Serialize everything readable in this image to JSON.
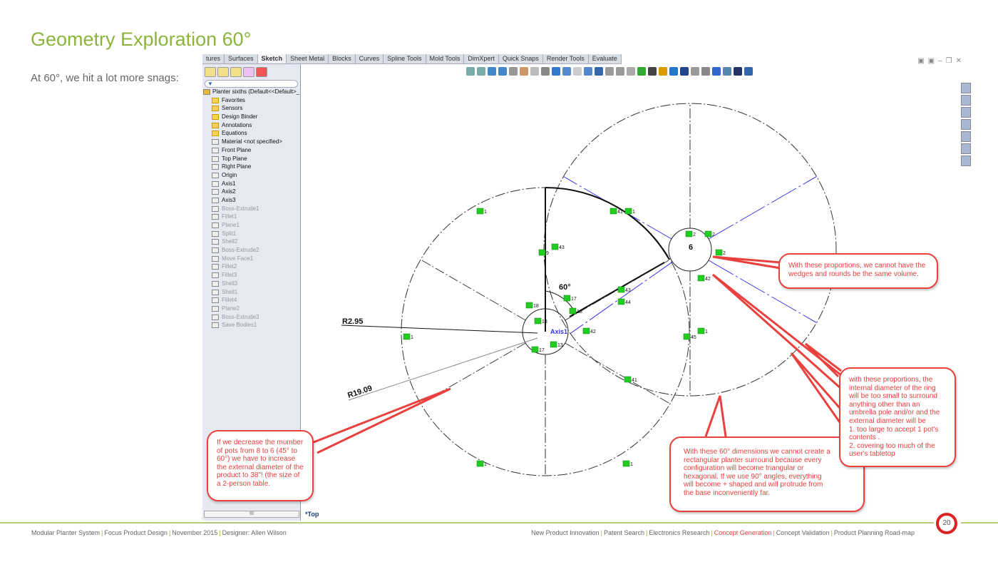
{
  "slide": {
    "title": "Geometry Exploration 60°",
    "subtitle": "At 60°, we hit a lot more snags:",
    "page_number": "20"
  },
  "cad": {
    "tabs": [
      "tures",
      "Surfaces",
      "Sketch",
      "Sheet Metal",
      "Blocks",
      "Curves",
      "Spline Tools",
      "Mold Tools",
      "DimXpert",
      "Quick Snaps",
      "Render Tools",
      "Evaluate"
    ],
    "active_tab": "Sketch",
    "tree_root": "Planter sixths  (Default<<Default>_",
    "tree": [
      {
        "label": "Favorites",
        "dim": false
      },
      {
        "label": "Sensors",
        "dim": false
      },
      {
        "label": "Design Binder",
        "dim": false
      },
      {
        "label": "Annotations",
        "dim": false
      },
      {
        "label": "Equations",
        "dim": false
      },
      {
        "label": "Material <not specified>",
        "dim": false
      },
      {
        "label": "Front Plane",
        "dim": false
      },
      {
        "label": "Top Plane",
        "dim": false
      },
      {
        "label": "Right Plane",
        "dim": false
      },
      {
        "label": "Origin",
        "dim": false
      },
      {
        "label": "Axis1",
        "dim": false
      },
      {
        "label": "Axis2",
        "dim": false
      },
      {
        "label": "Axis3",
        "dim": false
      },
      {
        "label": "Boss-Extrude1",
        "dim": true
      },
      {
        "label": "Fillet1",
        "dim": true
      },
      {
        "label": "Plane1",
        "dim": true
      },
      {
        "label": "Split1",
        "dim": true
      },
      {
        "label": "Shell2",
        "dim": true
      },
      {
        "label": "Boss-Extrude2",
        "dim": true
      },
      {
        "label": "Move Face1",
        "dim": true
      },
      {
        "label": "Fillet2",
        "dim": true
      },
      {
        "label": "Fillet3",
        "dim": true
      },
      {
        "label": "Shell3",
        "dim": true
      },
      {
        "label": "Shell1",
        "dim": true
      },
      {
        "label": "Fillet4",
        "dim": true
      },
      {
        "label": "Plane2",
        "dim": true
      },
      {
        "label": "Boss-Extrude3",
        "dim": true
      },
      {
        "label": "Save Bodies1",
        "dim": true
      }
    ],
    "scroll_thumb": "III",
    "view_label": "*Top",
    "dimensions": {
      "r_small": "R2.95",
      "r_large": "R19.09",
      "angle": "60°",
      "count": "6",
      "axis": "Axis1"
    },
    "relations": [
      "1",
      "41",
      "1",
      "43",
      "9",
      "2",
      "2",
      "2",
      "42",
      "17",
      "18",
      "18",
      "13",
      "43",
      "44",
      "42",
      "17",
      "13",
      "1",
      "45",
      "41",
      "1",
      "1",
      "1"
    ]
  },
  "callouts": {
    "volume": "With these proportions, we cannot have the wedges and rounds be the same volume.",
    "diameter": "with these proportions, the internal diameter of the ring will be too small to surround anything other than an umbrella pole and/or and the external diameter will be\n1. too large to accept 1 pot's contents .\n2. covering too much of the user's tabletop",
    "angles": "With these 60° dimensions we cannot create a rectangular planter surround because every configuration will become triangular or hexagonal. If we use 90° angles, everything will become + shaped and will protrude from the base inconveniently far.",
    "pots": "If we decrease the mumber of pots from 8 to 6 (45° to 60°) we have to increase the external diameter of the product to 38\"! (the size of a 2-person table."
  },
  "footer": {
    "left": [
      "Modular Planter System",
      "Focus Product Design",
      "November 2015",
      "Designer: Allen Wilson"
    ],
    "right": [
      "New Product Innovation",
      "Patent Search",
      "Electronics Research",
      "Concept Generation",
      "Concept Validation",
      "Product Planning Road-map"
    ],
    "highlight": "Concept Generation"
  },
  "colors": {
    "accent_green": "#8cb43c",
    "callout_red": "#e8413e",
    "relation_green": "#22cc22",
    "construction_blue": "#3344ee"
  }
}
